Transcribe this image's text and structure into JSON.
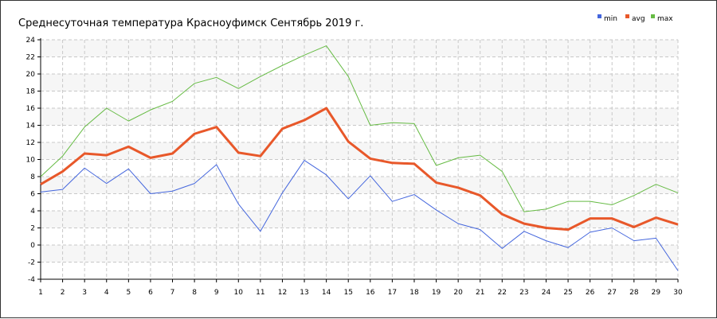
{
  "chart_data": {
    "type": "line",
    "title": "Среднесуточная температура Красноуфимск  Сентябрь 2019 г.",
    "xlabel": "",
    "ylabel": "",
    "x": [
      1,
      2,
      3,
      4,
      5,
      6,
      7,
      8,
      9,
      10,
      11,
      12,
      13,
      14,
      15,
      16,
      17,
      18,
      19,
      20,
      21,
      22,
      23,
      24,
      25,
      26,
      27,
      28,
      29,
      30
    ],
    "ylim": [
      -4,
      24
    ],
    "yticks": [
      -4,
      -2,
      0,
      2,
      4,
      6,
      8,
      10,
      12,
      14,
      16,
      18,
      20,
      22,
      24
    ],
    "grid": true,
    "legend_position": "top-right",
    "series": [
      {
        "name": "min",
        "color": "#4466dd",
        "values": [
          6.2,
          6.5,
          9.0,
          7.2,
          8.9,
          6.0,
          6.3,
          7.2,
          9.4,
          4.8,
          1.6,
          6.1,
          9.9,
          8.2,
          5.4,
          8.1,
          5.1,
          5.9,
          4.1,
          2.5,
          1.8,
          -0.4,
          1.6,
          0.5,
          -0.3,
          1.5,
          2.0,
          0.5,
          0.8,
          -3.0
        ]
      },
      {
        "name": "avg",
        "color": "#e8582a",
        "values": [
          7.1,
          8.6,
          10.7,
          10.5,
          11.5,
          10.2,
          10.7,
          13.0,
          13.8,
          10.8,
          10.4,
          13.6,
          14.6,
          16.0,
          12.1,
          10.1,
          9.6,
          9.5,
          7.3,
          6.7,
          5.8,
          3.6,
          2.5,
          2.0,
          1.8,
          3.1,
          3.1,
          2.1,
          3.2,
          2.4
        ]
      },
      {
        "name": "max",
        "color": "#66bb44",
        "values": [
          8.0,
          10.4,
          13.8,
          16.0,
          14.5,
          15.8,
          16.8,
          18.9,
          19.6,
          18.3,
          19.7,
          21.0,
          22.2,
          23.3,
          19.7,
          14.0,
          14.3,
          14.2,
          9.3,
          10.2,
          10.5,
          8.6,
          3.9,
          4.2,
          5.1,
          5.1,
          4.7,
          5.8,
          7.1,
          6.1
        ]
      }
    ]
  }
}
